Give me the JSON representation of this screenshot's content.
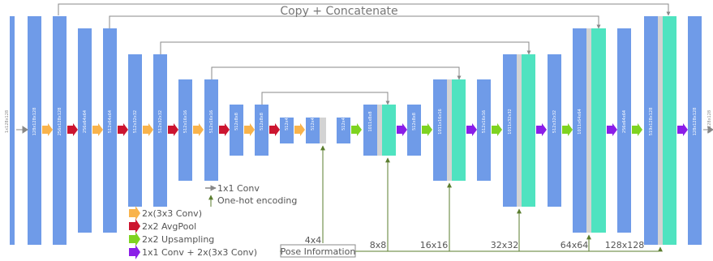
{
  "title": "Copy + Concatenate",
  "colors": {
    "block": "#6f9be8",
    "concat": "#4fe3c0",
    "gray": "#d3d3d3",
    "conv": "#f9b34b",
    "pool": "#cc1530",
    "upsample": "#7ed321",
    "conv1x1": "#8b1ee8",
    "line": "#888888",
    "pose": "#5a7d2e"
  },
  "dims": {
    "input": "1x128x128",
    "b1": "128x128x128",
    "b2": "256x128x128",
    "b3": "256x64x64",
    "b4": "512x64x64",
    "b5": "512x32x32",
    "b6": "512x32x32",
    "b7": "512x16x16",
    "b8": "512x16x16",
    "b9": "512x8x8",
    "b10": "512x8x8",
    "b11": "512x4x4",
    "b12": "512x4x4",
    "b13": "512x4x4",
    "b14": "1011x8x8",
    "b15": "512x8x8",
    "b16": "1011x16x16",
    "b17": "512x16x16",
    "b18": "1011x32x32",
    "b19": "512x32x32",
    "b20": "1011x64x64",
    "b21": "256x64x64",
    "b22": "519x128x128",
    "b23": "128x128x128",
    "output": "1x128x128"
  },
  "legend": {
    "conv1x1_line": "1x1 Conv",
    "onehot": "One-hot encoding",
    "conv3x3": "2x(3x3 Conv)",
    "avgpool": "2x2 AvgPool",
    "upsampling": "2x2 Upsampling",
    "conv1x1_conv3x3": "1x1 Conv + 2x(3x3 Conv)"
  },
  "pose": {
    "label": "Pose Information",
    "resolutions": [
      "4x4",
      "8x8",
      "16x16",
      "32x32",
      "64x64",
      "128x128"
    ]
  }
}
